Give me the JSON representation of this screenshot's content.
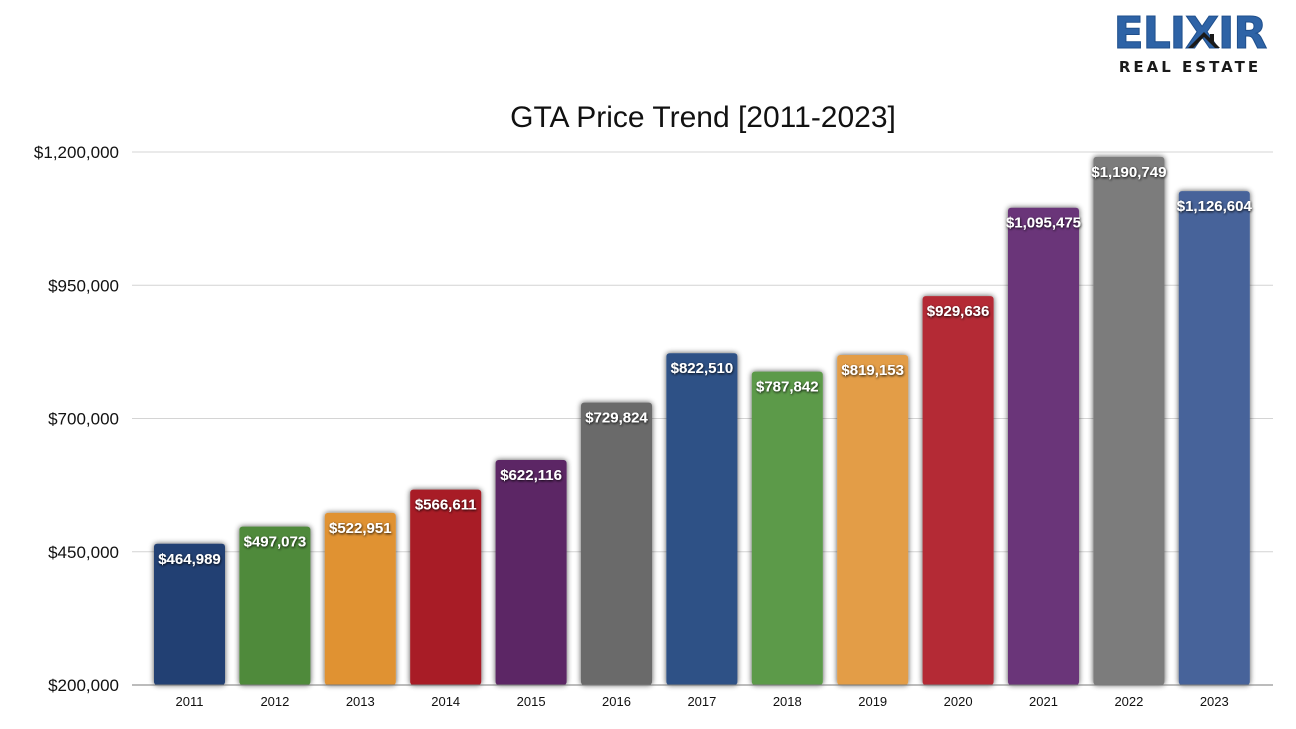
{
  "logo": {
    "main_text": "ELIXIR",
    "sub_text": "REAL ESTATE",
    "icon": "house-roof-icon",
    "brand_color": "#2e63a6"
  },
  "chart_data": {
    "type": "bar",
    "title": "GTA Price Trend [2011-2023]",
    "xlabel": "",
    "ylabel": "",
    "categories": [
      "2011",
      "2012",
      "2013",
      "2014",
      "2015",
      "2016",
      "2017",
      "2018",
      "2019",
      "2020",
      "2021",
      "2022",
      "2023"
    ],
    "values": [
      464989,
      497073,
      522951,
      566611,
      622116,
      729824,
      822510,
      787842,
      819153,
      929636,
      1095475,
      1190749,
      1126604
    ],
    "data_labels": [
      "$464,989",
      "$497,073",
      "$522,951",
      "$566,611",
      "$622,116",
      "$729,824",
      "$822,510",
      "$787,842",
      "$819,153",
      "$929,636",
      "$1,095,475",
      "$1,190,749",
      "$1,126,604"
    ],
    "colors": [
      "#233f73",
      "#4f8a3a",
      "#e09232",
      "#a81d25",
      "#5b2865",
      "#6a6a6a",
      "#2f5186",
      "#5c9a48",
      "#e39d46",
      "#b42b35",
      "#6b3679",
      "#7c7c7c",
      "#46649a"
    ],
    "ylim": [
      200000,
      1200000
    ],
    "yticks": [
      200000,
      450000,
      700000,
      950000,
      1200000
    ],
    "ytick_labels": [
      "$200,000",
      "$450,000",
      "$700,000",
      "$950,000",
      "$1,200,000"
    ],
    "grid": true,
    "legend": "none"
  }
}
